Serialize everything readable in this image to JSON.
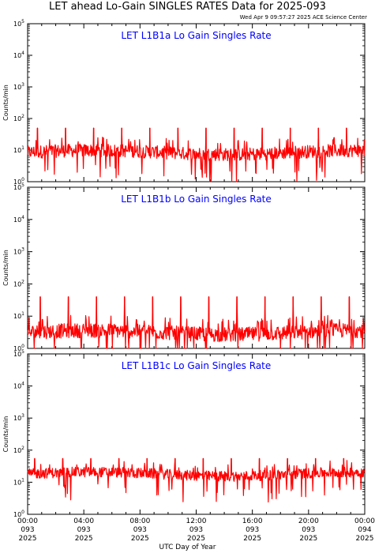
{
  "header": {
    "title": "LET ahead Lo-Gain SINGLES RATES Data for 2025-093",
    "timestamp": "Wed Apr  9 09:57:27 2025 ACE Science Center"
  },
  "colors": {
    "series": "#ff0000",
    "panel_title": "#0000ff",
    "axis": "#000000"
  },
  "chart_data": [
    {
      "type": "line",
      "title": "LET L1B1a Lo Gain Singles Rate",
      "ylabel": "Counts/min",
      "yscale": "log",
      "ylim": [
        1,
        100000
      ],
      "ytick_labels": [
        "10^0",
        "10^1",
        "10^2",
        "10^3",
        "10^4",
        "10^5"
      ],
      "x_range_hours": [
        0,
        24
      ],
      "baseline": 11,
      "noise_low": 3,
      "noise_high": 20,
      "spike_value": 50,
      "spike_hours": [
        0.7,
        2.7,
        4.7,
        6.7,
        8.7,
        10.7,
        12.7,
        14.7,
        16.7,
        18.7,
        20.7,
        22.7
      ],
      "grid": false,
      "legend": "none"
    },
    {
      "type": "line",
      "title": "LET L1B1b Lo Gain Singles Rate",
      "ylabel": "Counts/min",
      "yscale": "log",
      "ylim": [
        1,
        100000
      ],
      "ytick_labels": [
        "10^0",
        "10^1",
        "10^2",
        "10^3",
        "10^4",
        "10^5"
      ],
      "x_range_hours": [
        0,
        24
      ],
      "baseline": 3,
      "noise_low": 1,
      "noise_high": 8,
      "spike_value": 40,
      "spike_hours": [
        0.9,
        2.9,
        4.9,
        6.9,
        8.9,
        10.9,
        12.9,
        14.9,
        16.9,
        18.9,
        20.9,
        22.9
      ],
      "grid": false,
      "legend": "none"
    },
    {
      "type": "line",
      "title": "LET L1B1c Lo Gain Singles Rate",
      "ylabel": "Counts/min",
      "yscale": "log",
      "ylim": [
        1,
        100000
      ],
      "ytick_labels": [
        "10^0",
        "10^1",
        "10^2",
        "10^3",
        "10^4",
        "10^5"
      ],
      "x_range_hours": [
        0,
        24
      ],
      "baseline": 17,
      "noise_low": 8,
      "noise_high": 35,
      "spike_value": 55,
      "spike_hours": [
        0.5,
        2.5,
        4.5,
        6.5,
        8.5,
        10.5,
        12.5,
        14.5,
        16.5,
        18.5,
        20.5,
        22.5
      ],
      "grid": false,
      "legend": "none"
    }
  ],
  "x_axis": {
    "label": "UTC Day of Year",
    "ticks": [
      {
        "hour": 0,
        "time": "00:00",
        "doy": "093",
        "year": "2025"
      },
      {
        "hour": 4,
        "time": "04:00",
        "doy": "093",
        "year": "2025"
      },
      {
        "hour": 8,
        "time": "08:00",
        "doy": "093",
        "year": "2025"
      },
      {
        "hour": 12,
        "time": "12:00",
        "doy": "093",
        "year": "2025"
      },
      {
        "hour": 16,
        "time": "16:00",
        "doy": "093",
        "year": "2025"
      },
      {
        "hour": 20,
        "time": "20:00",
        "doy": "093",
        "year": "2025"
      },
      {
        "hour": 24,
        "time": "00:00",
        "doy": "094",
        "year": "2025"
      }
    ]
  }
}
